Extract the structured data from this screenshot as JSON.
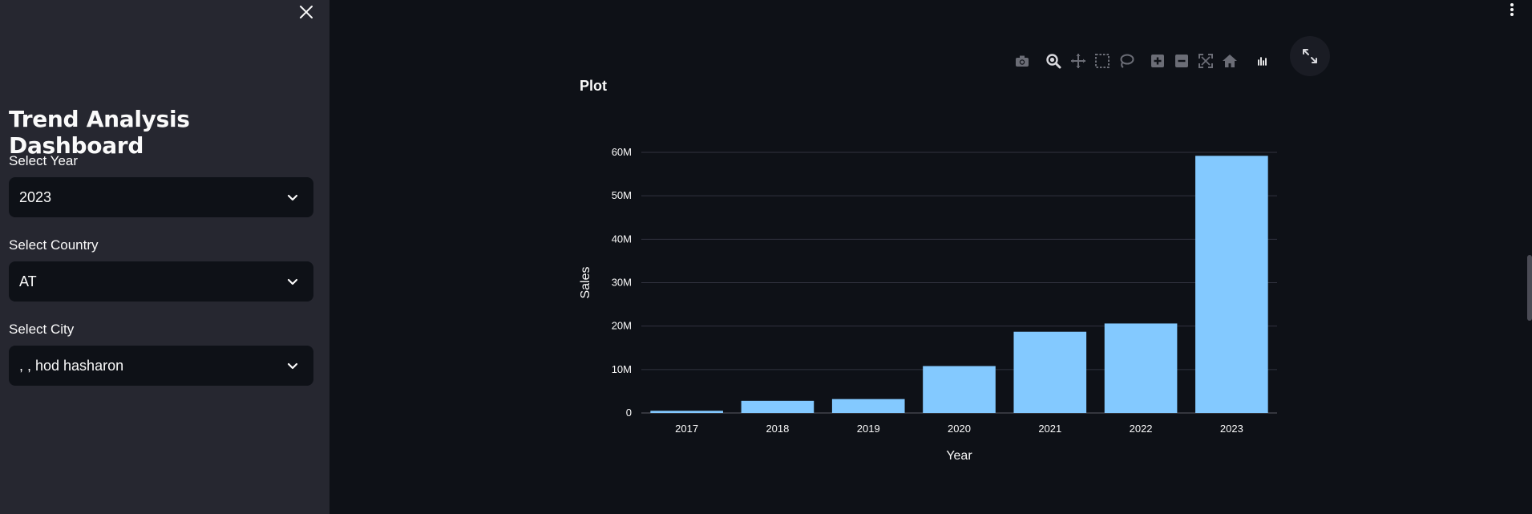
{
  "sidebar": {
    "title": "Trend Analysis Dashboard",
    "close_icon": "close-icon",
    "filters": [
      {
        "label": "Select Year",
        "value": "2023"
      },
      {
        "label": "Select Country",
        "value": "AT"
      },
      {
        "label": "Select City",
        "value": ", , hod hasharon"
      }
    ]
  },
  "main": {
    "heading": "Plot",
    "toolbar": [
      "camera-icon",
      "zoom-icon",
      "pan-icon",
      "box-select-icon",
      "lasso-select-icon",
      "zoom-in-icon",
      "zoom-out-icon",
      "autoscale-icon",
      "reset-axes-icon",
      "plotly-logo-icon"
    ],
    "expand_icon": "fullscreen-icon",
    "menu_icon": "kebab-menu-icon"
  },
  "colors": {
    "background": "#0e1117",
    "sidebar": "#262730",
    "bar": "#83c9ff",
    "grid": "#31333f"
  },
  "chart_data": {
    "type": "bar",
    "categories": [
      "2017",
      "2018",
      "2019",
      "2020",
      "2021",
      "2022",
      "2023"
    ],
    "values": [
      0.5,
      2.8,
      3.2,
      10.8,
      18.7,
      20.6,
      59.2
    ],
    "value_unit": "M",
    "xlabel": "Year",
    "ylabel": "Sales",
    "ylim": [
      0,
      60
    ],
    "yticks": [
      {
        "value": 0,
        "label": "0"
      },
      {
        "value": 10,
        "label": "10M"
      },
      {
        "value": 20,
        "label": "20M"
      },
      {
        "value": 30,
        "label": "30M"
      },
      {
        "value": 40,
        "label": "40M"
      },
      {
        "value": 50,
        "label": "50M"
      },
      {
        "value": 60,
        "label": "60M"
      }
    ],
    "grid": true
  }
}
